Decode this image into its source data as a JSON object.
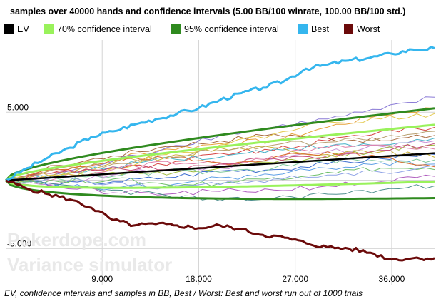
{
  "caption": "EV, confidence intervals and samples in BB, Best / Worst: Best and worst run out of 1000 trials",
  "watermark": {
    "line1": "Pokerdope.com",
    "line2": "Variance simulator"
  },
  "colors": {
    "ev": "#000000",
    "ci70": "#99f25b",
    "ci95": "#2f8a1f",
    "best": "#35b6ee",
    "worst": "#6b0a0a",
    "samples": [
      "#e6a23a",
      "#8a7ad6",
      "#d64545",
      "#49b3c9",
      "#c98fd6",
      "#9dbb3a",
      "#e07fa8",
      "#3f6fd0",
      "#c9b13a",
      "#7fc99d",
      "#a86a3f",
      "#5fa0e6",
      "#d96b2a",
      "#6fbf6a",
      "#b05fbf",
      "#e3c84a",
      "#4f8f8f",
      "#c44b7a",
      "#8fa3e6",
      "#b8a070"
    ]
  },
  "chart_data": {
    "type": "line",
    "title": "samples over 40000 hands and confidence intervals (5.00 BB/100 winrate, 100.00 BB/100 std.)",
    "legend": [
      "EV",
      "70% confidence interval",
      "95% confidence interval",
      "Best",
      "Worst"
    ],
    "legend_position": "top",
    "xlim": [
      0,
      40000
    ],
    "ylim": [
      -7700,
      10300
    ],
    "grid": true,
    "x_ticks": [
      9000,
      18000,
      27000,
      36000
    ],
    "x_tick_labels": [
      "9.000",
      "18.000",
      "27.000",
      "36.000"
    ],
    "y_ticks": [
      5000,
      -5000
    ],
    "y_tick_labels": [
      "5.000",
      "-5.000"
    ],
    "winrate_bb_per_100": 5.0,
    "std_bb_per_100": 100.0,
    "best": {
      "x": [
        0,
        2000,
        4000,
        6000,
        8000,
        10000,
        12000,
        14000,
        16000,
        18000,
        20000,
        22000,
        24000,
        26000,
        28000,
        30000,
        32000,
        34000,
        36000,
        38000,
        40000
      ],
      "y": [
        0,
        900,
        1700,
        2400,
        3200,
        3600,
        4100,
        4500,
        4900,
        5300,
        5900,
        6400,
        6800,
        7300,
        8200,
        8500,
        8800,
        9000,
        9300,
        9600,
        9700
      ]
    },
    "worst": {
      "x": [
        0,
        2000,
        4000,
        6000,
        8000,
        10000,
        12000,
        14000,
        16000,
        18000,
        20000,
        22000,
        24000,
        26000,
        28000,
        30000,
        32000,
        34000,
        36000,
        38000,
        40000
      ],
      "y": [
        0,
        -600,
        -1000,
        -1400,
        -2000,
        -2900,
        -3300,
        -3200,
        -3300,
        -3500,
        -3300,
        -3600,
        -4000,
        -4200,
        -4600,
        -4900,
        -5000,
        -5300,
        -5800,
        -5700,
        -5700
      ]
    },
    "samples_y_at_x": {
      "x": [
        0,
        5000,
        10000,
        15000,
        20000,
        25000,
        30000,
        35000,
        40000
      ],
      "series": [
        [
          0,
          900,
          1600,
          2300,
          2700,
          2900,
          3900,
          4800,
          5300
        ],
        [
          0,
          500,
          1400,
          2400,
          3300,
          3900,
          4500,
          5200,
          6100
        ],
        [
          0,
          700,
          900,
          1100,
          2000,
          2200,
          2900,
          3600,
          3900
        ],
        [
          0,
          300,
          1000,
          1700,
          1700,
          2300,
          2500,
          2600,
          3100
        ],
        [
          0,
          -200,
          400,
          800,
          900,
          1600,
          2100,
          2500,
          2900
        ],
        [
          0,
          400,
          600,
          400,
          900,
          1300,
          1700,
          2300,
          2600
        ],
        [
          0,
          200,
          800,
          1400,
          1200,
          1800,
          2400,
          2600,
          2300
        ],
        [
          0,
          -300,
          -100,
          200,
          700,
          800,
          1200,
          1600,
          1900
        ],
        [
          0,
          600,
          1300,
          1700,
          2400,
          2400,
          1900,
          2100,
          1700
        ],
        [
          0,
          100,
          300,
          700,
          600,
          900,
          1500,
          1400,
          1500
        ],
        [
          0,
          1100,
          1800,
          2500,
          2900,
          3400,
          3100,
          2900,
          3300
        ],
        [
          0,
          -400,
          -600,
          -400,
          200,
          400,
          900,
          1300,
          1200
        ],
        [
          0,
          800,
          1500,
          1600,
          1300,
          1700,
          2100,
          1700,
          1000
        ],
        [
          0,
          -100,
          100,
          -300,
          -200,
          200,
          600,
          900,
          800
        ],
        [
          0,
          -500,
          -900,
          -1000,
          -800,
          -700,
          -400,
          -100,
          300
        ],
        [
          0,
          400,
          900,
          1900,
          2600,
          3400,
          4300,
          4500,
          4900
        ],
        [
          0,
          -300,
          -700,
          -1100,
          -1500,
          -1300,
          -1000,
          -700,
          -400
        ],
        [
          0,
          600,
          1000,
          800,
          1200,
          1600,
          1800,
          2200,
          2700
        ],
        [
          0,
          200,
          -200,
          -500,
          -300,
          100,
          400,
          600,
          1100
        ],
        [
          0,
          900,
          1200,
          1800,
          2200,
          2600,
          2800,
          3100,
          3600
        ]
      ]
    }
  }
}
